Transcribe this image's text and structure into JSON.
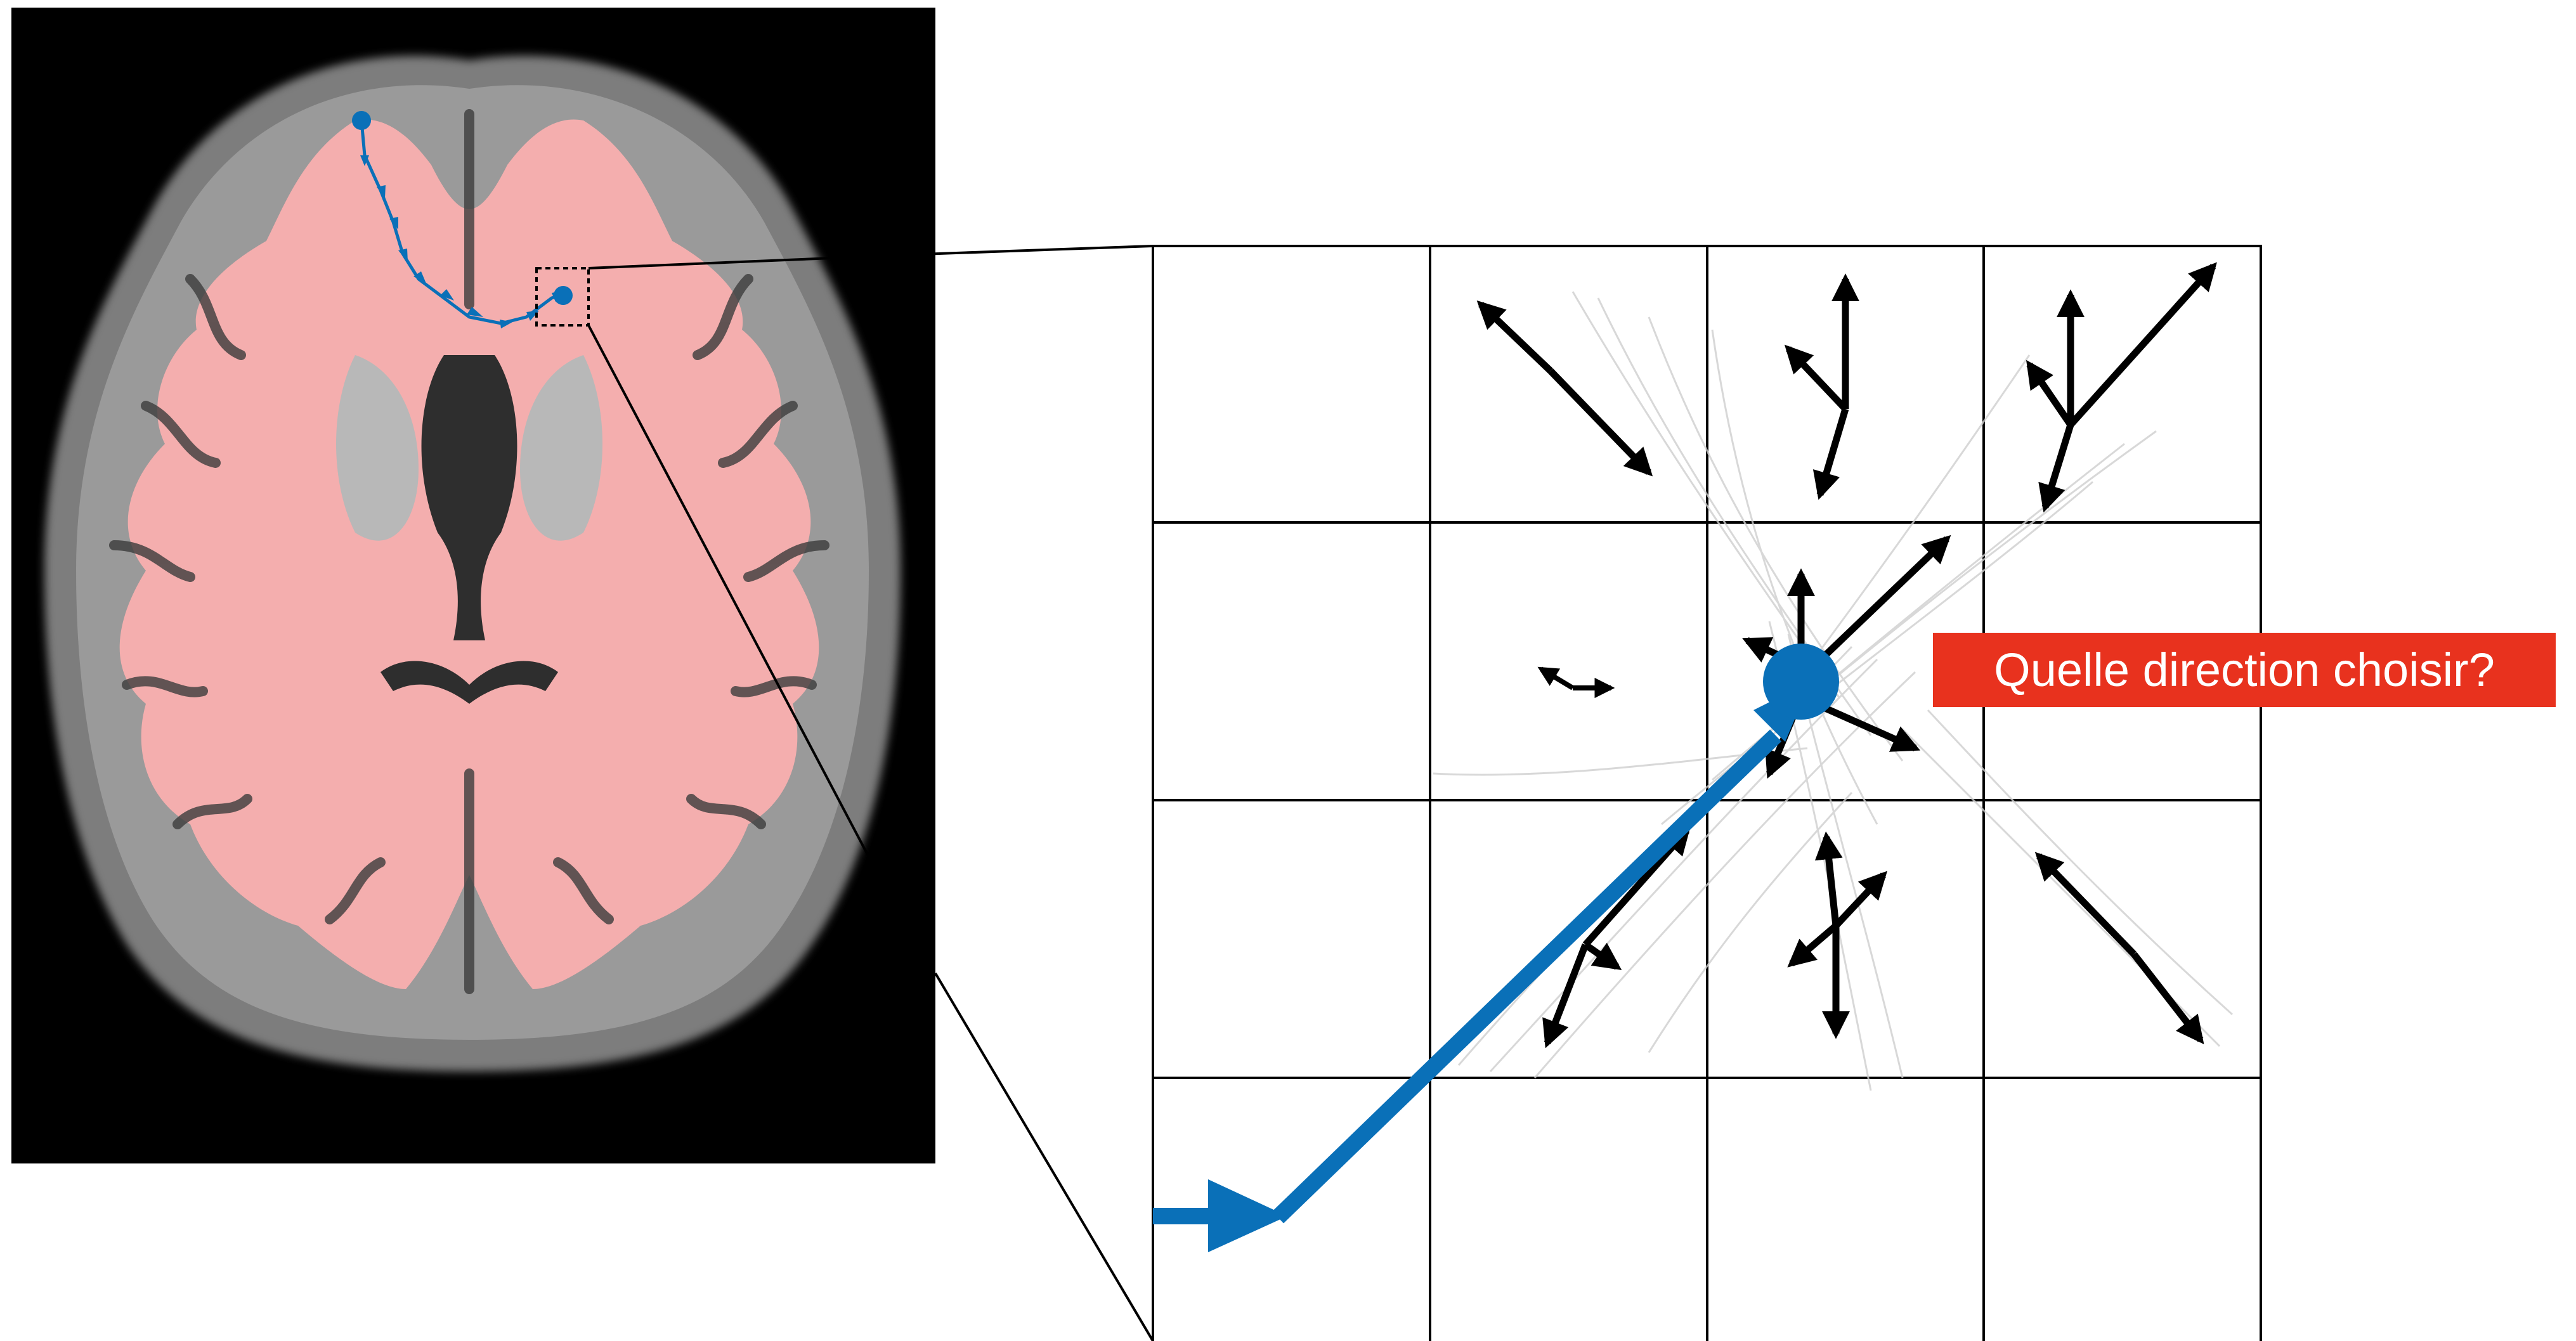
{
  "figure": {
    "question_label": "Quelle direction choisir?"
  },
  "colors": {
    "background": "#ffffff",
    "mri_background": "#000000",
    "white_matter_overlay": "#f4aeae",
    "gray_matter": "#8f8f8f",
    "tract": "#0a70b8",
    "arrows": "#000000",
    "fiber_lines": "#c8c8c8",
    "label_background": "#e8321e",
    "label_text": "#ffffff"
  },
  "left_panel": {
    "image": "axial-brain-mri-slice",
    "overlay": "white-matter-mask",
    "tract": "streamline-with-direction-arrows",
    "zoom_marker": "dotted-square"
  },
  "right_panel": {
    "grid": {
      "rows": 4,
      "columns": 4
    },
    "current_point": "tracking-position-dot",
    "incoming_direction": "thick-tract-arrow"
  }
}
